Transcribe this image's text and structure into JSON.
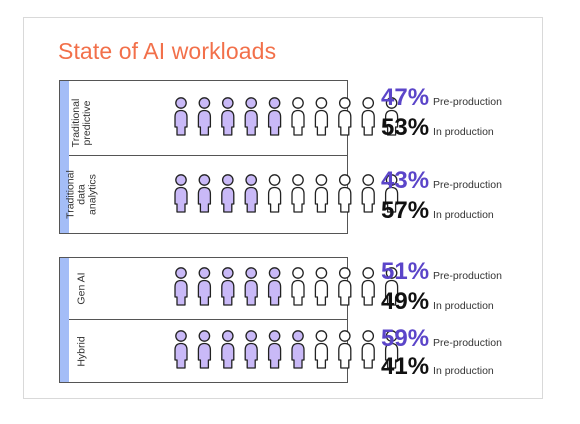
{
  "title": "State of AI workloads",
  "colors": {
    "title": "#f2704a",
    "accent_bar": "#a4bdf7",
    "pre_production_icon": "#c9b9f7",
    "pre_production_text": "#5b45c9",
    "in_production_icon": "#ffffff",
    "outline": "#222222"
  },
  "chart_data": {
    "type": "pictogram",
    "icon": "person-icon",
    "icons_per_row": 10,
    "categories": [
      "Traditional predictive",
      "Traditional data analytics",
      "Gen AI",
      "Hybrid"
    ],
    "series": [
      {
        "name": "Pre-production",
        "values": [
          47,
          43,
          51,
          59
        ],
        "unit": "%"
      },
      {
        "name": "In production",
        "values": [
          53,
          57,
          49,
          41
        ],
        "unit": "%"
      }
    ],
    "filled_icons": [
      5,
      4,
      5,
      6
    ]
  },
  "rows": [
    {
      "label": "Traditional\npredictive",
      "pre_pct": "47%",
      "pre_label": "Pre-production",
      "prod_pct": "53%",
      "prod_label": "In production"
    },
    {
      "label": "Traditional\ndata\nanalytics",
      "pre_pct": "43%",
      "pre_label": "Pre-production",
      "prod_pct": "57%",
      "prod_label": "In production"
    },
    {
      "label": "Gen AI",
      "pre_pct": "51%",
      "pre_label": "Pre-production",
      "prod_pct": "49%",
      "prod_label": "In production"
    },
    {
      "label": "Hybrid",
      "pre_pct": "59%",
      "pre_label": "Pre-production",
      "prod_pct": "41%",
      "prod_label": "In production"
    }
  ]
}
